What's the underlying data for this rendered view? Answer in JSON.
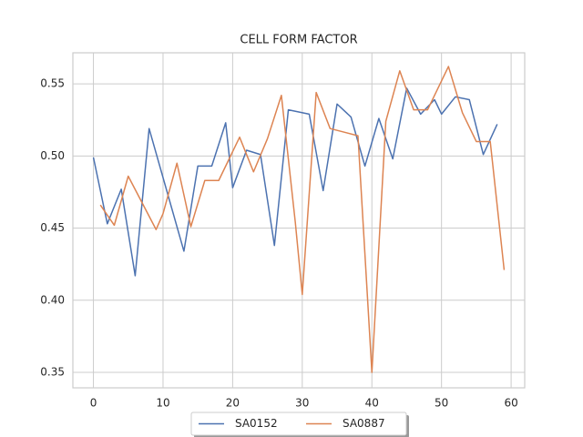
{
  "chart_data": {
    "type": "line",
    "title": "CELL FORM FACTOR",
    "xlim": [
      -2.95,
      61.95
    ],
    "ylim": [
      0.3393,
      0.5715
    ],
    "xticks": [
      0,
      10,
      20,
      30,
      40,
      50,
      60
    ],
    "yticks": [
      0.35,
      {
        "value": 0.4,
        "label": "0.40"
      },
      0.45,
      {
        "value": 0.5,
        "label": "0.50"
      },
      0.55
    ],
    "grid": true,
    "legend": "lower center",
    "series": [
      {
        "name": "SA0152",
        "color": "#4c72b0",
        "x": [
          0,
          2,
          4,
          6,
          8,
          13,
          15,
          17,
          19,
          20,
          22,
          24,
          26,
          28,
          31,
          33,
          35,
          37,
          39,
          41,
          43,
          45,
          47,
          49,
          50,
          52,
          54,
          56,
          58
        ],
        "values": [
          0.499,
          0.453,
          0.477,
          0.417,
          0.519,
          0.434,
          0.493,
          0.493,
          0.523,
          0.478,
          0.504,
          0.501,
          0.438,
          0.532,
          0.529,
          0.476,
          0.536,
          0.527,
          0.493,
          0.526,
          0.498,
          0.547,
          0.529,
          0.539,
          0.529,
          0.541,
          0.539,
          0.501,
          0.522
        ]
      },
      {
        "name": "SA0887",
        "color": "#dd8452",
        "x": [
          1,
          3,
          5,
          9,
          10,
          12,
          14,
          16,
          18,
          21,
          23,
          25,
          27,
          29,
          30,
          32,
          34,
          38,
          40,
          42,
          44,
          46,
          48,
          51,
          53,
          55,
          57,
          59
        ],
        "values": [
          0.466,
          0.452,
          0.486,
          0.449,
          0.46,
          0.495,
          0.451,
          0.483,
          0.483,
          0.513,
          0.489,
          0.512,
          0.542,
          0.454,
          0.404,
          0.544,
          0.519,
          0.514,
          0.35,
          0.524,
          0.559,
          0.532,
          0.532,
          0.562,
          0.53,
          0.51,
          0.51,
          0.421
        ]
      }
    ]
  }
}
